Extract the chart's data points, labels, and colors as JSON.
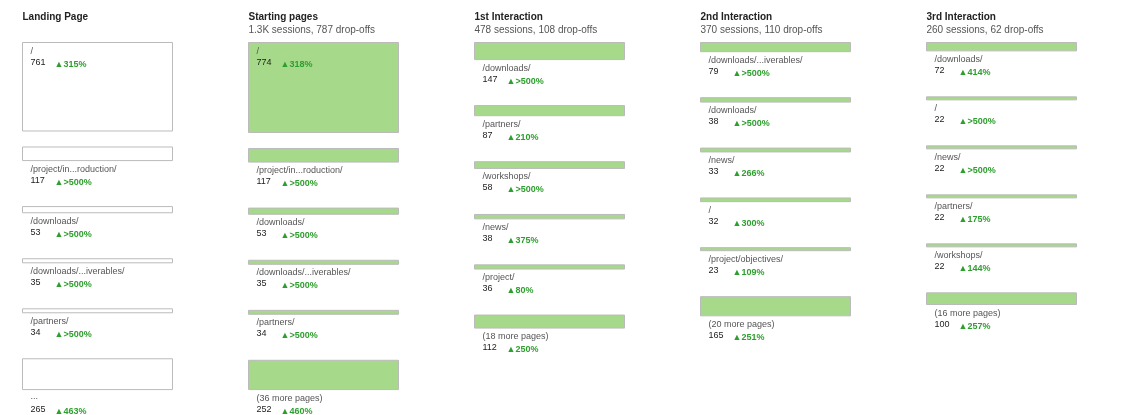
{
  "chart_data": [
    {
      "type": "other",
      "title": "Landing Page",
      "categories": [
        "/",
        "/project/in...roduction/",
        "/downloads/",
        "/downloads/...iverables/",
        "/partners/",
        "..."
      ],
      "values": [
        761,
        117,
        53,
        35,
        34,
        265
      ],
      "color": "#ffffff",
      "data_labels": true,
      "annotations": [
        "▲315%",
        "▲>500%",
        "▲>500%",
        "▲>500%",
        "▲>500%",
        "▲463%"
      ]
    },
    {
      "type": "other",
      "title": "Starting pages",
      "subtitle": "1.3K sessions, 787 drop-offs",
      "categories": [
        "/",
        "/project/in...roduction/",
        "/downloads/",
        "/downloads/...iverables/",
        "/partners/",
        "(36 more pages)"
      ],
      "values": [
        774,
        117,
        53,
        35,
        34,
        252
      ],
      "color": "#a6d98a",
      "data_labels": true,
      "annotations": [
        "▲318%",
        "▲>500%",
        "▲>500%",
        "▲>500%",
        "▲>500%",
        "▲460%"
      ]
    },
    {
      "type": "other",
      "title": "1st Interaction",
      "subtitle": "478 sessions, 108 drop-offs",
      "categories": [
        "/downloads/",
        "/partners/",
        "/workshops/",
        "/news/",
        "/project/",
        "(18 more pages)"
      ],
      "values": [
        147,
        87,
        58,
        38,
        36,
        112
      ],
      "color": "#a6d98a",
      "data_labels": true,
      "annotations": [
        "▲>500%",
        "▲210%",
        "▲>500%",
        "▲375%",
        "▲80%",
        "▲250%"
      ]
    },
    {
      "type": "other",
      "title": "2nd Interaction",
      "subtitle": "370 sessions, 110 drop-offs",
      "categories": [
        "/downloads/...iverables/",
        "/downloads/",
        "/news/",
        "/",
        "/project/objectives/",
        "(20 more pages)"
      ],
      "values": [
        79,
        38,
        33,
        32,
        23,
        165
      ],
      "color": "#a6d98a",
      "data_labels": true,
      "annotations": [
        "▲>500%",
        "▲>500%",
        "▲266%",
        "▲300%",
        "▲109%",
        "▲251%"
      ]
    },
    {
      "type": "other",
      "title": "3rd Interaction",
      "subtitle": "260 sessions, 62 drop-offs",
      "categories": [
        "/downloads/",
        "/",
        "/news/",
        "/partners/",
        "/workshops/",
        "(16 more pages)"
      ],
      "values": [
        72,
        22,
        22,
        22,
        22,
        100
      ],
      "color": "#a6d98a",
      "data_labels": true,
      "annotations": [
        "▲414%",
        "▲>500%",
        "▲>500%",
        "▲175%",
        "▲144%",
        "▲257%"
      ]
    }
  ]
}
